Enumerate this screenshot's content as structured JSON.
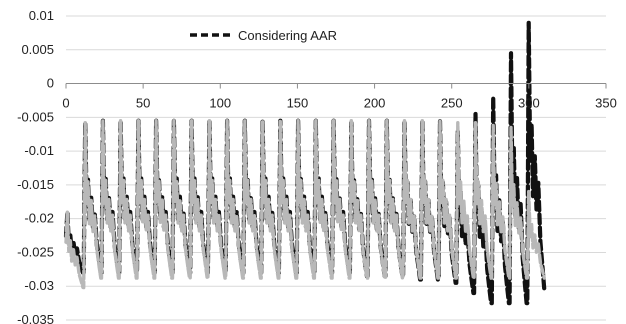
{
  "chart_data": {
    "type": "line",
    "title": "",
    "xlabel": "",
    "ylabel": "",
    "xlim": [
      0,
      350
    ],
    "ylim": [
      -0.035,
      0.01
    ],
    "x_ticks": [
      0,
      50,
      100,
      150,
      200,
      250,
      300,
      350
    ],
    "y_ticks": [
      0.01,
      0.005,
      0,
      -0.005,
      -0.01,
      -0.015,
      -0.02,
      -0.025,
      -0.03,
      -0.035
    ],
    "x_tick_labels": [
      "0",
      "50",
      "100",
      "150",
      "200",
      "250",
      "300",
      "350"
    ],
    "y_tick_labels": [
      "0.01",
      "0.005",
      "0",
      "-0.005",
      "-0.01",
      "-0.015",
      "-0.02",
      "-0.025",
      "-0.03",
      "-0.035"
    ],
    "grid": "horizontal",
    "legend_position": "top-left",
    "series": [
      {
        "name": "Considering AAR",
        "color": "#111111",
        "style": "dashed",
        "cycle_period": 11.5,
        "cycles": [
          {
            "t": 0,
            "min": -0.028,
            "max": -0.019
          },
          {
            "t": 11.5,
            "min": -0.028,
            "max": -0.0058
          },
          {
            "t": 23,
            "min": -0.028,
            "max": -0.0055
          },
          {
            "t": 34.5,
            "min": -0.028,
            "max": -0.0055
          },
          {
            "t": 46,
            "min": -0.028,
            "max": -0.0055
          },
          {
            "t": 57.5,
            "min": -0.028,
            "max": -0.0055
          },
          {
            "t": 69,
            "min": -0.028,
            "max": -0.0055
          },
          {
            "t": 80.5,
            "min": -0.028,
            "max": -0.0055
          },
          {
            "t": 92,
            "min": -0.028,
            "max": -0.0055
          },
          {
            "t": 103.5,
            "min": -0.028,
            "max": -0.0055
          },
          {
            "t": 115,
            "min": -0.028,
            "max": -0.0055
          },
          {
            "t": 126.5,
            "min": -0.028,
            "max": -0.0055
          },
          {
            "t": 138,
            "min": -0.028,
            "max": -0.0055
          },
          {
            "t": 149.5,
            "min": -0.028,
            "max": -0.0055
          },
          {
            "t": 161,
            "min": -0.028,
            "max": -0.0055
          },
          {
            "t": 172.5,
            "min": -0.028,
            "max": -0.0055
          },
          {
            "t": 184,
            "min": -0.0285,
            "max": -0.0055
          },
          {
            "t": 195.5,
            "min": -0.0285,
            "max": -0.0055
          },
          {
            "t": 207,
            "min": -0.0285,
            "max": -0.0055
          },
          {
            "t": 218.5,
            "min": -0.029,
            "max": -0.0055
          },
          {
            "t": 230,
            "min": -0.029,
            "max": -0.0055
          },
          {
            "t": 241.5,
            "min": -0.0295,
            "max": -0.0055
          },
          {
            "t": 253,
            "min": -0.031,
            "max": -0.007
          },
          {
            "t": 264.5,
            "min": -0.0325,
            "max": -0.0045
          },
          {
            "t": 276,
            "min": -0.0325,
            "max": -0.002
          },
          {
            "t": 287.5,
            "min": -0.0325,
            "max": 0.0045
          },
          {
            "t": 299,
            "min": -0.0305,
            "max": 0.009
          }
        ]
      },
      {
        "name": "",
        "color": "#b8b8b8",
        "style": "dashed",
        "cycle_period": 11.5,
        "cycles": [
          {
            "t": 0,
            "min": -0.0302,
            "max": -0.019
          },
          {
            "t": 11.5,
            "min": -0.0288,
            "max": -0.0058
          },
          {
            "t": 23,
            "min": -0.0288,
            "max": -0.0055
          },
          {
            "t": 34.5,
            "min": -0.0288,
            "max": -0.0055
          },
          {
            "t": 46,
            "min": -0.0288,
            "max": -0.0055
          },
          {
            "t": 57.5,
            "min": -0.0288,
            "max": -0.0055
          },
          {
            "t": 69,
            "min": -0.0288,
            "max": -0.0055
          },
          {
            "t": 80.5,
            "min": -0.0288,
            "max": -0.0055
          },
          {
            "t": 92,
            "min": -0.0288,
            "max": -0.0055
          },
          {
            "t": 103.5,
            "min": -0.0288,
            "max": -0.0055
          },
          {
            "t": 115,
            "min": -0.0288,
            "max": -0.0055
          },
          {
            "t": 126.5,
            "min": -0.0288,
            "max": -0.0055
          },
          {
            "t": 138,
            "min": -0.0288,
            "max": -0.0055
          },
          {
            "t": 149.5,
            "min": -0.0288,
            "max": -0.0055
          },
          {
            "t": 161,
            "min": -0.0288,
            "max": -0.0055
          },
          {
            "t": 172.5,
            "min": -0.0288,
            "max": -0.0055
          },
          {
            "t": 184,
            "min": -0.0288,
            "max": -0.0055
          },
          {
            "t": 195.5,
            "min": -0.0288,
            "max": -0.0055
          },
          {
            "t": 207,
            "min": -0.0288,
            "max": -0.0055
          },
          {
            "t": 218.5,
            "min": -0.0288,
            "max": -0.0055
          },
          {
            "t": 230,
            "min": -0.0288,
            "max": -0.0055
          },
          {
            "t": 241.5,
            "min": -0.0288,
            "max": -0.0055
          },
          {
            "t": 253,
            "min": -0.0288,
            "max": -0.0058
          },
          {
            "t": 264.5,
            "min": -0.0288,
            "max": -0.0058
          },
          {
            "t": 276,
            "min": -0.0288,
            "max": -0.0062
          },
          {
            "t": 287.5,
            "min": -0.0288,
            "max": -0.0065
          },
          {
            "t": 299,
            "min": -0.0288,
            "max": -0.016
          }
        ]
      }
    ]
  }
}
